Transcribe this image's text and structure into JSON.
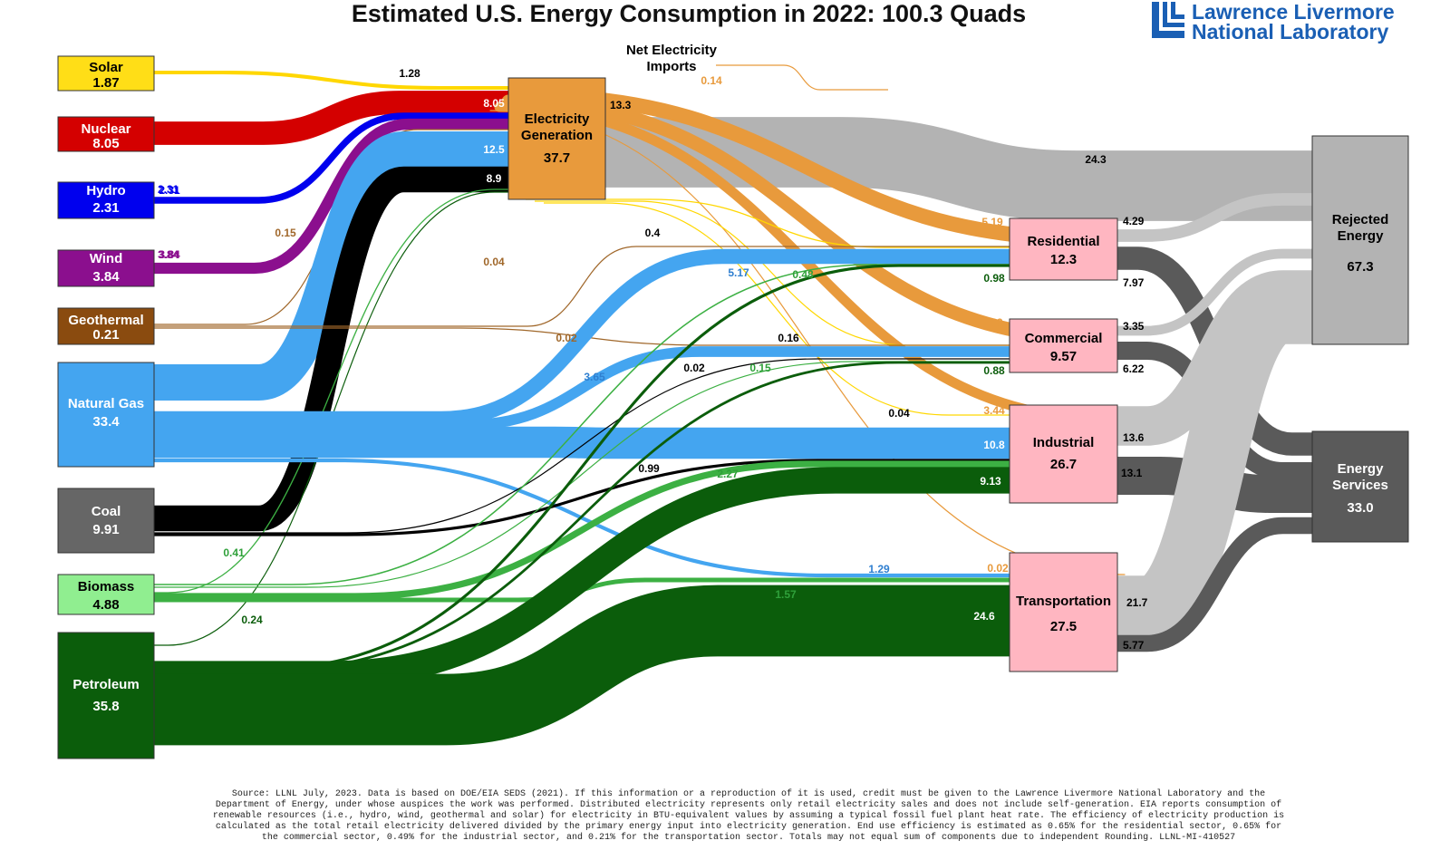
{
  "title": "Estimated U.S. Energy Consumption in 2022: 100.3 Quads",
  "logo": {
    "line1": "Lawrence Livermore",
    "line2": "National Laboratory",
    "color": "#1a5fb4"
  },
  "nodes": [
    {
      "id": "solar",
      "name": "Solar",
      "value": "1.87",
      "color": "#ffde17",
      "text": "#000000"
    },
    {
      "id": "nuclear",
      "name": "Nuclear",
      "value": "8.05",
      "color": "#d40000",
      "text": "#ffffff"
    },
    {
      "id": "hydro",
      "name": "Hydro",
      "value": "2.31",
      "color": "#0000ee",
      "text": "#ffffff"
    },
    {
      "id": "wind",
      "name": "Wind",
      "value": "3.84",
      "color": "#8b0f8e",
      "text": "#ffffff"
    },
    {
      "id": "geothermal",
      "name": "Geothermal",
      "value": "0.21",
      "color": "#8a4b0f",
      "text": "#ffffff"
    },
    {
      "id": "natgas",
      "name": "Natural Gas",
      "value": "33.4",
      "color": "#44a5f0",
      "text": "#ffffff"
    },
    {
      "id": "coal",
      "name": "Coal",
      "value": "9.91",
      "color": "#666666",
      "text": "#ffffff"
    },
    {
      "id": "biomass",
      "name": "Biomass",
      "value": "4.88",
      "color": "#90ee90",
      "text": "#000000"
    },
    {
      "id": "petroleum",
      "name": "Petroleum",
      "value": "35.8",
      "color": "#0b5d0b",
      "text": "#ffffff"
    },
    {
      "id": "elec",
      "name": "Electricity Generation",
      "value": "37.7",
      "color": "#e89a3c",
      "text": "#000000"
    },
    {
      "id": "residential",
      "name": "Residential",
      "value": "12.3",
      "color": "#ffb6c1",
      "text": "#000000"
    },
    {
      "id": "commercial",
      "name": "Commercial",
      "value": "9.57",
      "color": "#ffb6c1",
      "text": "#000000"
    },
    {
      "id": "industrial",
      "name": "Industrial",
      "value": "26.7",
      "color": "#ffb6c1",
      "text": "#000000"
    },
    {
      "id": "transportation",
      "name": "Transportation",
      "value": "27.5",
      "color": "#ffb6c1",
      "text": "#000000"
    },
    {
      "id": "rejected",
      "name": "Rejected Energy",
      "value": "67.3",
      "color": "#b3b3b3",
      "text": "#000000"
    },
    {
      "id": "services",
      "name": "Energy Services",
      "value": "33.0",
      "color": "#5a5a5a",
      "text": "#ffffff"
    }
  ],
  "flows": [
    {
      "from": "solar",
      "to": "elec",
      "label": "1.28",
      "value": 1.28,
      "color": "#ffd700"
    },
    {
      "from": "nuclear",
      "to": "elec",
      "label": "8.05",
      "value": 8.05,
      "color": "#d40000"
    },
    {
      "from": "hydro",
      "to": "elec",
      "label": "2.31",
      "value": 2.31,
      "color": "#0000ee"
    },
    {
      "from": "wind",
      "to": "elec",
      "label": "3.84",
      "value": 3.84,
      "color": "#8b0f8e"
    },
    {
      "from": "geothermal",
      "to": "elec",
      "label": "0.15",
      "value": 0.15,
      "color": "#a0672a"
    },
    {
      "from": "natgas",
      "to": "elec",
      "label": "12.5",
      "value": 12.5,
      "color": "#44a5f0"
    },
    {
      "from": "coal",
      "to": "elec",
      "label": "8.9",
      "value": 8.9,
      "color": "#000000"
    },
    {
      "from": "biomass",
      "to": "elec",
      "label": "0.41",
      "value": 0.41,
      "color": "#3cb043"
    },
    {
      "from": "petroleum",
      "to": "elec",
      "label": "0.24",
      "value": 0.24,
      "color": "#0b5d0b"
    },
    {
      "from": "imports",
      "to": "elec",
      "label": "0.14",
      "value": 0.14,
      "color": "#e89a3c"
    },
    {
      "from": "elec",
      "to": "rejected",
      "label": "24.3",
      "value": 24.3,
      "color": "#b3b3b3"
    },
    {
      "from": "elec",
      "to": "residential",
      "label": "5.19",
      "value": 5.19,
      "color": "#e89a3c"
    },
    {
      "from": "elec",
      "to": "commercial",
      "label": "4.69",
      "value": 4.69,
      "color": "#e89a3c"
    },
    {
      "from": "elec",
      "to": "industrial",
      "label": "3.44",
      "value": 3.44,
      "color": "#e89a3c"
    },
    {
      "from": "elec",
      "to": "transportation",
      "label": "0.02",
      "value": 0.02,
      "color": "#e89a3c"
    },
    {
      "from": "solar",
      "to": "residential",
      "label": "0.4",
      "value": 0.4,
      "color": "#ffd700"
    },
    {
      "from": "solar",
      "to": "commercial",
      "label": "0.16",
      "value": 0.16,
      "color": "#ffd700"
    },
    {
      "from": "solar",
      "to": "industrial",
      "label": "0.04",
      "value": 0.04,
      "color": "#ffd700"
    },
    {
      "from": "geothermal",
      "to": "residential",
      "label": "0.04",
      "value": 0.04,
      "color": "#a0672a"
    },
    {
      "from": "geothermal",
      "to": "commercial",
      "label": "0.02",
      "value": 0.02,
      "color": "#a0672a"
    },
    {
      "from": "natgas",
      "to": "residential",
      "label": "5.17",
      "value": 5.17,
      "color": "#44a5f0"
    },
    {
      "from": "natgas",
      "to": "commercial",
      "label": "3.65",
      "value": 3.65,
      "color": "#44a5f0"
    },
    {
      "from": "natgas",
      "to": "industrial",
      "label": "10.8",
      "value": 10.8,
      "color": "#44a5f0"
    },
    {
      "from": "natgas",
      "to": "transportation",
      "label": "1.29",
      "value": 1.29,
      "color": "#44a5f0"
    },
    {
      "from": "coal",
      "to": "commercial",
      "label": "0.02",
      "value": 0.02,
      "color": "#000000"
    },
    {
      "from": "coal",
      "to": "industrial",
      "label": "0.99",
      "value": 0.99,
      "color": "#000000"
    },
    {
      "from": "biomass",
      "to": "residential",
      "label": "0.48",
      "value": 0.48,
      "color": "#3cb043"
    },
    {
      "from": "biomass",
      "to": "commercial",
      "label": "0.15",
      "value": 0.15,
      "color": "#3cb043"
    },
    {
      "from": "biomass",
      "to": "industrial",
      "label": "2.27",
      "value": 2.27,
      "color": "#3cb043"
    },
    {
      "from": "biomass",
      "to": "transportation",
      "label": "1.57",
      "value": 1.57,
      "color": "#3cb043"
    },
    {
      "from": "petroleum",
      "to": "residential",
      "label": "0.98",
      "value": 0.98,
      "color": "#0b5d0b"
    },
    {
      "from": "petroleum",
      "to": "commercial",
      "label": "0.88",
      "value": 0.88,
      "color": "#0b5d0b"
    },
    {
      "from": "petroleum",
      "to": "industrial",
      "label": "9.13",
      "value": 9.13,
      "color": "#0b5d0b"
    },
    {
      "from": "petroleum",
      "to": "transportation",
      "label": "24.6",
      "value": 24.6,
      "color": "#0b5d0b"
    },
    {
      "from": "residential",
      "to": "rejected",
      "label": "4.29",
      "value": 4.29,
      "color": "#c4c4c4"
    },
    {
      "from": "residential",
      "to": "services",
      "label": "7.97",
      "value": 7.97,
      "color": "#5a5a5a"
    },
    {
      "from": "commercial",
      "to": "rejected",
      "label": "3.35",
      "value": 3.35,
      "color": "#c4c4c4"
    },
    {
      "from": "commercial",
      "to": "services",
      "label": "6.22",
      "value": 6.22,
      "color": "#5a5a5a"
    },
    {
      "from": "industrial",
      "to": "rejected",
      "label": "13.6",
      "value": 13.6,
      "color": "#c4c4c4"
    },
    {
      "from": "industrial",
      "to": "services",
      "label": "13.1",
      "value": 13.1,
      "color": "#5a5a5a"
    },
    {
      "from": "transportation",
      "to": "rejected",
      "label": "21.7",
      "value": 21.7,
      "color": "#c4c4c4"
    },
    {
      "from": "transportation",
      "to": "services",
      "label": "5.77",
      "value": 5.77,
      "color": "#5a5a5a"
    }
  ],
  "extra_labels": [
    {
      "text": "Net Electricity"
    },
    {
      "text": "Imports"
    },
    {
      "text": "2.31"
    },
    {
      "text": "3.84"
    },
    {
      "text": "13.3"
    }
  ],
  "source_note": [
    "Source: LLNL July, 2023. Data is based on DOE/EIA SEDS (2021). If this information or a reproduction of it is used, credit must be given to the Lawrence Livermore National Laboratory and the",
    "Department of Energy, under whose auspices the work was performed. Distributed electricity represents only retail electricity sales and does not include self-generation.  EIA reports consumption of",
    "renewable resources (i.e., hydro, wind, geothermal and solar) for electricity in BTU-equivalent values by assuming a typical fossil fuel plant heat rate.  The efficiency of electricity production is",
    "calculated as the total retail electricity delivered divided by the primary energy input into electricity generation.  End use efficiency is estimated as 0.65% for the residential sector, 0.65% for",
    "the commercial sector, 0.49% for the industrial sector, and 0.21% for the transportation sector.  Totals may not equal sum of components due to independent Rounding.  LLNL-MI-410527"
  ]
}
